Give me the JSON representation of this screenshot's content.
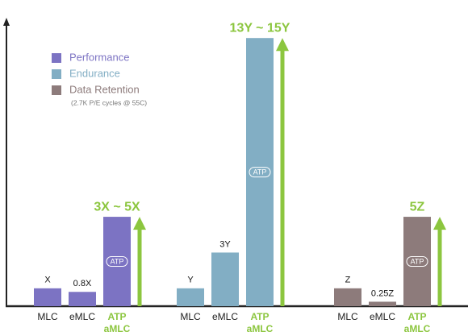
{
  "chart_data": {
    "type": "bar",
    "categories": [
      "MLC",
      "eMLC",
      "ATP aMLC"
    ],
    "badge": "ATP",
    "legend_note": "(2.7K P/E cycles @ 55C)",
    "ylim": [
      0,
      16
    ],
    "highlight_color": "#8cc63f",
    "series": [
      {
        "name": "Performance",
        "color": "#7c73c3",
        "values": [
          1,
          0.8,
          5
        ],
        "value_labels": [
          "X",
          "0.8X",
          "3X ~ 5X"
        ]
      },
      {
        "name": "Endurance",
        "color": "#82aec4",
        "values": [
          1,
          3,
          15
        ],
        "value_labels": [
          "Y",
          "3Y",
          "13Y ~ 15Y"
        ]
      },
      {
        "name": "Data Retention",
        "color": "#8d7b7b",
        "values": [
          1,
          0.25,
          5
        ],
        "value_labels": [
          "Z",
          "0.25Z",
          "5Z"
        ]
      }
    ]
  }
}
